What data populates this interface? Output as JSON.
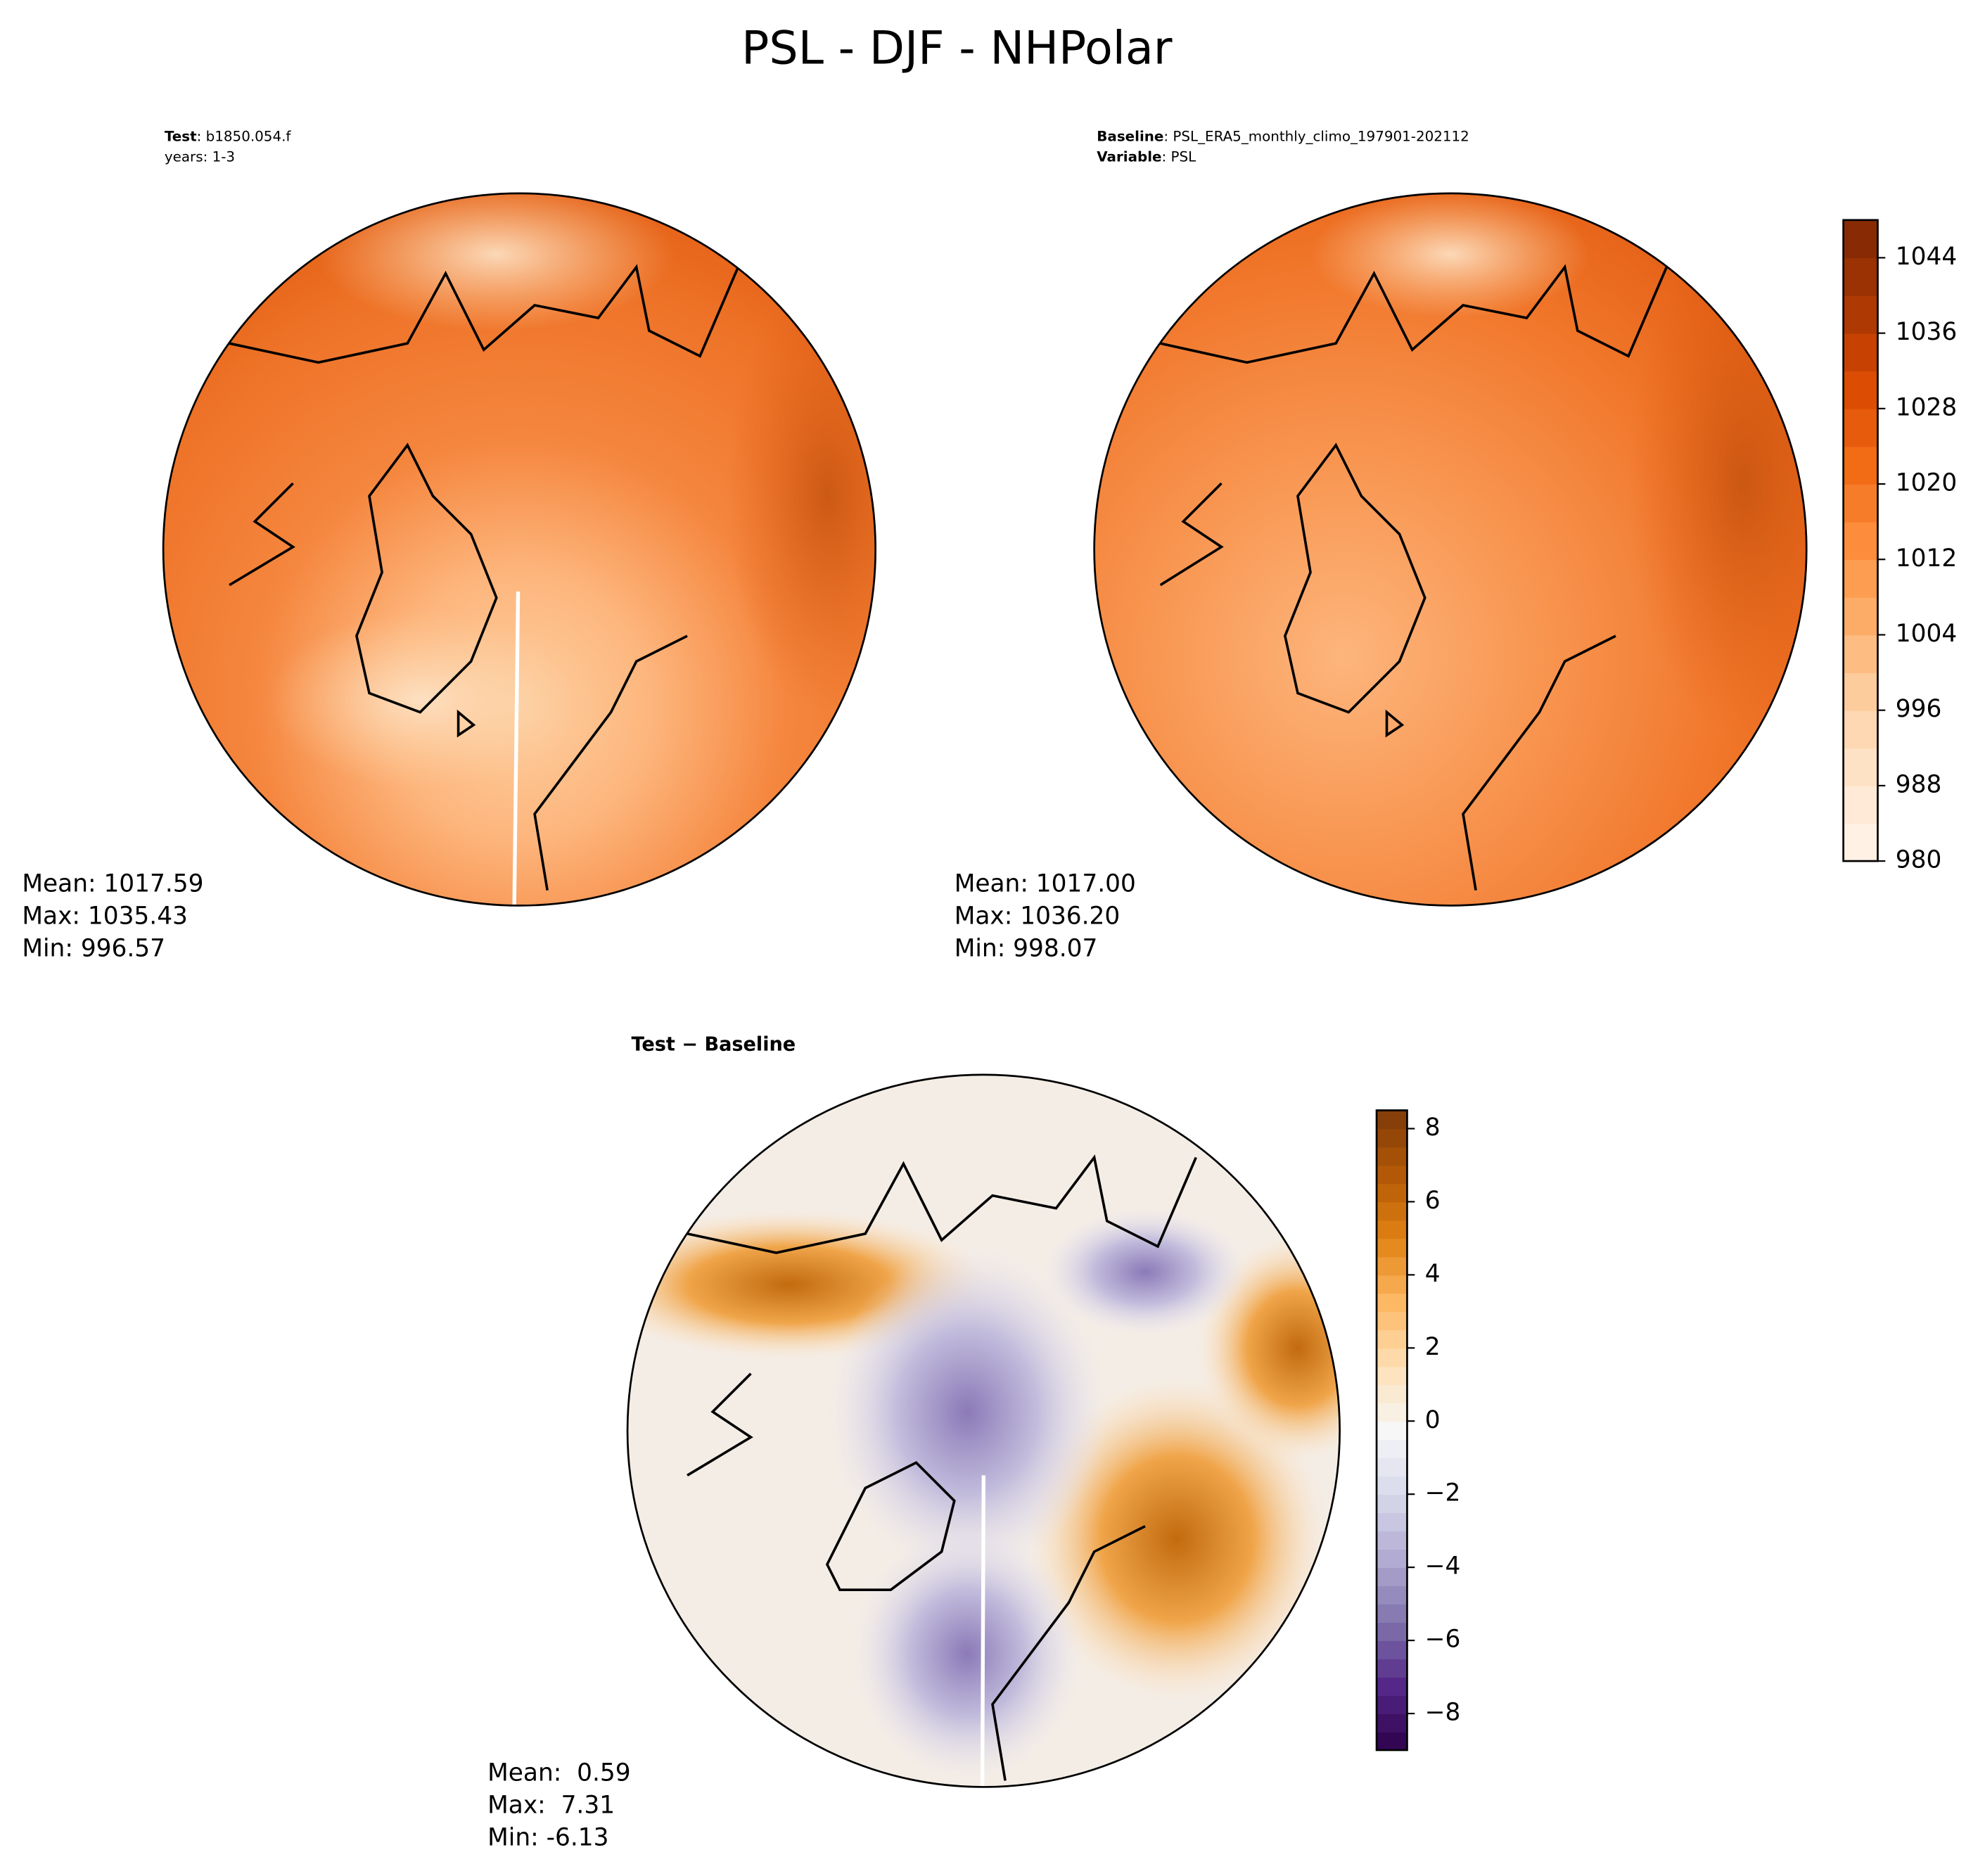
{
  "title": "PSL - DJF - NHPolar",
  "panels": [
    {
      "header": [
        {
          "key": "Test",
          "text": ": b1850.054.f"
        },
        {
          "text": "years: 1-3"
        }
      ],
      "stats": [
        "Mean: 1017.59",
        "Max: 1035.43",
        "Min: 996.57"
      ]
    },
    {
      "header": [
        {
          "key": "Baseline",
          "text": ": PSL_ERA5_monthly_climo_197901-202112"
        },
        {
          "key": "Variable",
          "text": ": PSL"
        }
      ],
      "stats": [
        "Mean: 1017.00",
        "Max: 1036.20",
        "Min: 998.07"
      ]
    },
    {
      "header": [
        {
          "key": "Test − Baseline"
        }
      ],
      "stats": [
        "Mean:  0.59",
        "Max:  7.31",
        "Min: -6.13"
      ]
    }
  ],
  "colorbars": [
    {
      "lim": [
        980,
        1048
      ],
      "ticks": [
        980,
        988,
        996,
        1004,
        1012,
        1020,
        1028,
        1036,
        1044
      ],
      "colors": [
        "#fff5eb",
        "#fee6ce",
        "#fdd0a2",
        "#fdae6b",
        "#fd8d3c",
        "#f16913",
        "#d94801",
        "#a63603",
        "#7f2704"
      ]
    },
    {
      "lim": [
        -9,
        8.5
      ],
      "ticks": [
        {
          "value": -8,
          "label": "−8"
        },
        {
          "value": -6,
          "label": "−6"
        },
        {
          "value": -4,
          "label": "−4"
        },
        {
          "value": -2,
          "label": "−2"
        },
        0,
        2,
        4,
        6,
        8
      ],
      "colors": [
        "#2d004b",
        "#542788",
        "#8073ac",
        "#b2abd2",
        "#d8daeb",
        "#f7f7f7",
        "#fee0b6",
        "#fdb863",
        "#e08214",
        "#b35806",
        "#7f3b08"
      ]
    }
  ]
}
